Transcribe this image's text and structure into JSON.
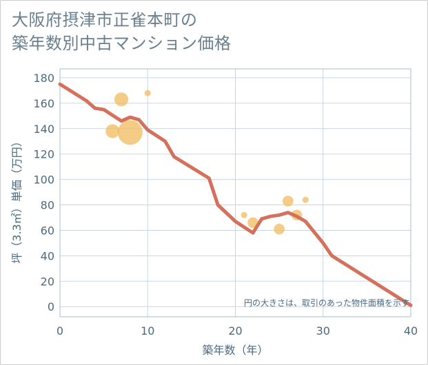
{
  "chart_data": {
    "type": "line+bubble",
    "title_line1": "大阪府摂津市正雀本町の",
    "title_line2": "築年数別中古マンション価格",
    "xlabel": "築年数（年）",
    "ylabel": "坪（3.3㎡）単価（万円）",
    "xlim": [
      0,
      40
    ],
    "ylim": [
      -8,
      187
    ],
    "x_ticks": [
      0,
      10,
      20,
      30,
      40
    ],
    "y_ticks": [
      0,
      20,
      40,
      60,
      80,
      100,
      120,
      140,
      160,
      180
    ],
    "grid": true,
    "note": "円の大きさは、取引のあった物件面積を示す",
    "colors": {
      "line": "#d4705c",
      "bubble": "#f2bb5c",
      "grid": "#c8d6e2"
    },
    "line": {
      "x": [
        0,
        3,
        4,
        5,
        7,
        8,
        9,
        10,
        12,
        13,
        17,
        18,
        20,
        22,
        23,
        24,
        25,
        26,
        27,
        28,
        30,
        31,
        40
      ],
      "y": [
        175,
        162,
        156,
        155,
        146,
        149,
        147,
        139,
        130,
        118,
        101,
        80,
        67,
        58,
        69,
        71,
        72,
        74,
        71,
        67,
        50,
        40,
        1
      ]
    },
    "bubbles": [
      {
        "x": 7,
        "y": 163,
        "size": 5
      },
      {
        "x": 10,
        "y": 168,
        "size": 1
      },
      {
        "x": 6,
        "y": 138,
        "size": 5
      },
      {
        "x": 8,
        "y": 137,
        "size": 16
      },
      {
        "x": 21,
        "y": 72,
        "size": 1
      },
      {
        "x": 22,
        "y": 66,
        "size": 3
      },
      {
        "x": 25,
        "y": 61,
        "size": 3
      },
      {
        "x": 26,
        "y": 83,
        "size": 3
      },
      {
        "x": 27,
        "y": 72,
        "size": 3
      },
      {
        "x": 28,
        "y": 84,
        "size": 1
      }
    ]
  }
}
